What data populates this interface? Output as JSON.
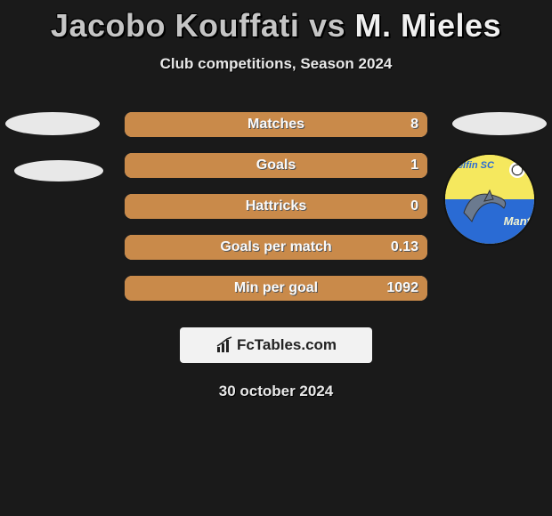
{
  "title_player1": "Jacobo Kouffati",
  "title_vs": "vs",
  "title_player2": "M. Mieles",
  "subtitle": "Club competitions, Season 2024",
  "date_text": "30 october 2024",
  "branding_text": "FcTables.com",
  "badge": {
    "text_top": "Delfin SC",
    "text_bottom": "Mant"
  },
  "colors": {
    "bar_bg": "#9a9a9a",
    "bar_fill": "#c98a4a",
    "background": "#1a1a1a",
    "ellipse": "#e8e8e8",
    "badge_top": "#f5e85e",
    "badge_bottom": "#2a6bd4",
    "branding_bg": "#f2f2f2",
    "text_light": "#f5f5f5"
  },
  "stats": [
    {
      "label": "Matches",
      "value_right": "8",
      "fill_pct": 100
    },
    {
      "label": "Goals",
      "value_right": "1",
      "fill_pct": 100
    },
    {
      "label": "Hattricks",
      "value_right": "0",
      "fill_pct": 100
    },
    {
      "label": "Goals per match",
      "value_right": "0.13",
      "fill_pct": 100
    },
    {
      "label": "Min per goal",
      "value_right": "1092",
      "fill_pct": 100
    }
  ]
}
